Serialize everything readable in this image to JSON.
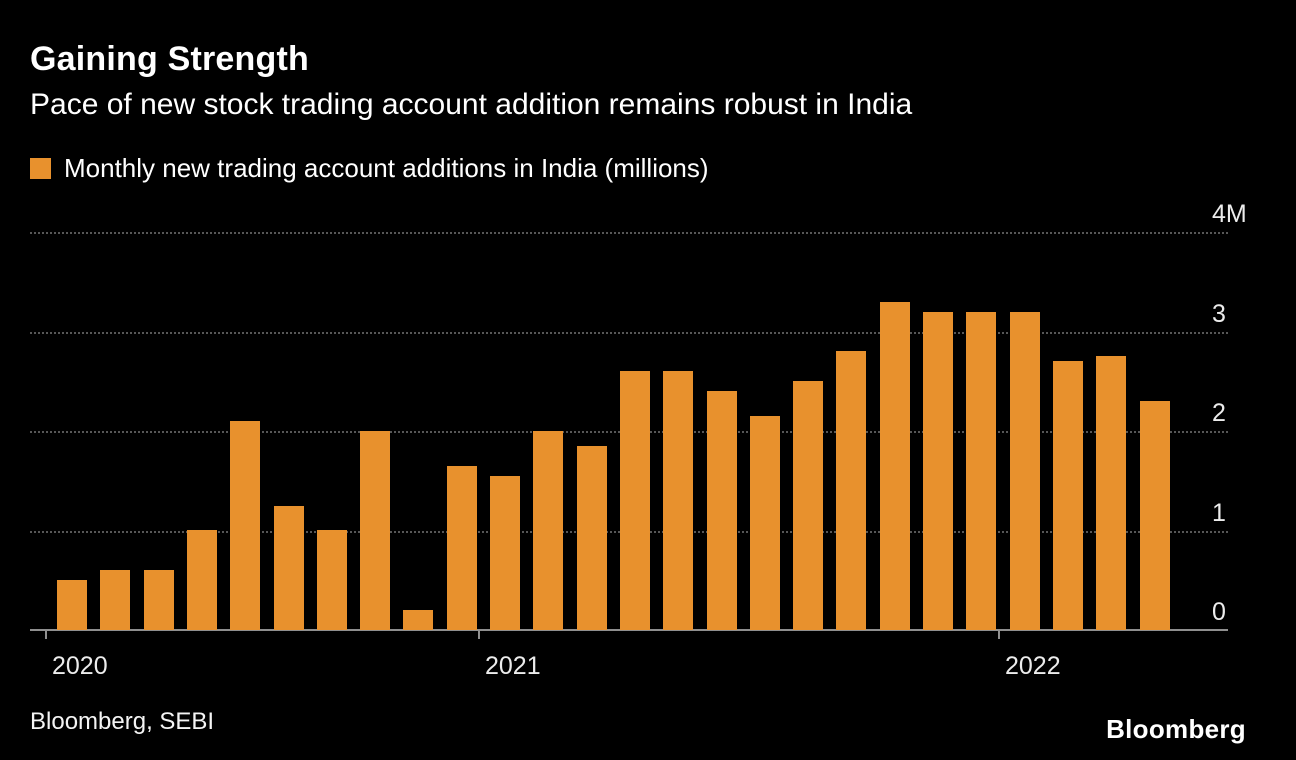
{
  "header": {
    "title": "Gaining Strength",
    "subtitle": "Pace of new stock trading account addition remains robust in India"
  },
  "legend": {
    "label": "Monthly new trading account additions in India (millions)",
    "color": "#E8912D"
  },
  "chart_data": {
    "type": "bar",
    "title": "Gaining Strength",
    "subtitle": "Pace of new stock trading account addition remains robust in India",
    "series_name": "Monthly new trading account additions in India (millions)",
    "values": [
      0.5,
      0.6,
      0.6,
      1.0,
      2.1,
      1.25,
      1.0,
      2.0,
      0.2,
      1.65,
      1.55,
      2.0,
      1.85,
      2.6,
      2.6,
      2.4,
      2.15,
      2.5,
      2.8,
      3.3,
      3.2,
      3.2,
      3.2,
      2.7,
      2.75,
      2.3
    ],
    "bar_color": "#E8912D",
    "ylim": [
      0,
      4
    ],
    "y_ticks": [
      0,
      1,
      2,
      3,
      4
    ],
    "y_tick_labels": [
      "0",
      "1",
      "2",
      "3",
      "4M"
    ],
    "y_axis_side": "right",
    "grid": "horizontal-dotted",
    "x_year_ticks": [
      {
        "label": "2020",
        "bar_index": 0
      },
      {
        "label": "2021",
        "bar_index": 10
      },
      {
        "label": "2022",
        "bar_index": 22
      }
    ]
  },
  "footer": {
    "source": "Bloomberg, SEBI",
    "logo": "Bloomberg"
  }
}
